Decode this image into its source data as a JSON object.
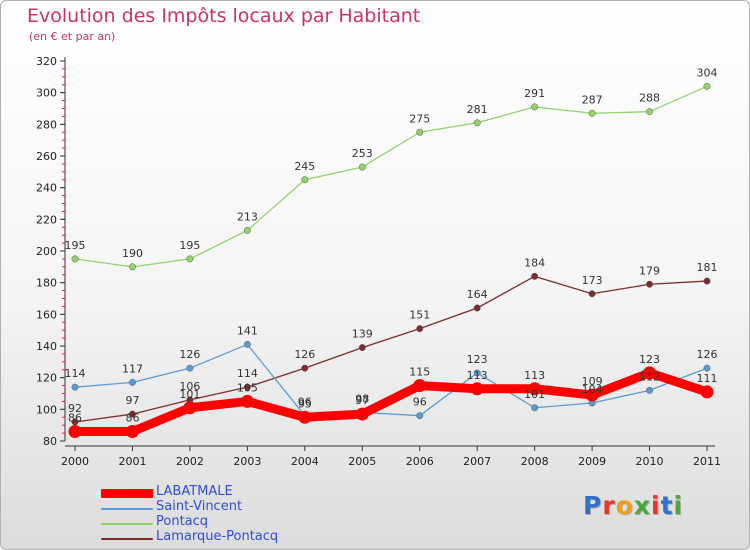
{
  "title": "Evolution des Impôts locaux par Habitant",
  "subtitle": "(en € et par an)",
  "logo": {
    "text": "Proxiti",
    "letter_colors": [
      "#2f6fd0",
      "#e8352a",
      "#f0a018",
      "#4aa838",
      "#e8352a",
      "#2f6fd0",
      "#4aa838"
    ]
  },
  "chart_data": {
    "type": "line",
    "x": [
      "2000",
      "2001",
      "2002",
      "2003",
      "2004",
      "2005",
      "2006",
      "2007",
      "2008",
      "2009",
      "2010",
      "2011"
    ],
    "ylim": [
      80,
      320
    ],
    "yticks": [
      80,
      100,
      120,
      140,
      160,
      180,
      200,
      220,
      240,
      260,
      280,
      300,
      320
    ],
    "grid": false,
    "legend_position": "bottom-left",
    "series": [
      {
        "name": "LABATMALE",
        "color": "#ff0000",
        "values": [
          86,
          86,
          101,
          105,
          95,
          97,
          115,
          113,
          113,
          109,
          123,
          111
        ],
        "labels": [
          "86",
          "86",
          "101",
          "105",
          "95",
          "97",
          "115",
          "113",
          "113",
          "109",
          "123",
          "111"
        ]
      },
      {
        "name": "Saint-Vincent",
        "color": "#5b9bd5",
        "values": [
          114,
          117,
          126,
          141,
          96,
          98,
          96,
          123,
          101,
          104,
          112,
          126
        ],
        "labels": [
          "114",
          "117",
          "126",
          "141",
          "96",
          "98",
          "96",
          "123",
          "101",
          "104",
          "112",
          "126"
        ]
      },
      {
        "name": "Pontacq",
        "color": "#92d36a",
        "values": [
          195,
          190,
          195,
          213,
          245,
          253,
          275,
          281,
          291,
          287,
          288,
          304
        ],
        "labels": [
          "195",
          "190",
          "195",
          "213",
          "245",
          "253",
          "275",
          "281",
          "291",
          "287",
          "288",
          "304"
        ]
      },
      {
        "name": "Lamarque-Pontacq",
        "color": "#7a2d2d",
        "values": [
          92,
          97,
          106,
          114,
          126,
          139,
          151,
          164,
          184,
          173,
          179,
          181
        ],
        "labels": [
          "92",
          "97",
          "106",
          "114",
          "126",
          "139",
          "151",
          "164",
          "184",
          "173",
          "179",
          "181"
        ]
      }
    ]
  }
}
